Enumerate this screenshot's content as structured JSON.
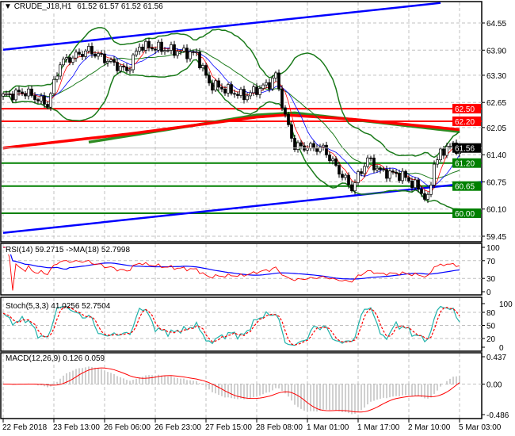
{
  "header": {
    "symbol": "CRUDE_J18,H1",
    "ohlc": "61.52 61.57 61.52 61.56"
  },
  "chart_data": {
    "type": "candlestick",
    "bar_count": 145,
    "price_path": [
      [
        0,
        62.8
      ],
      [
        7,
        62.9
      ],
      [
        14,
        62.6
      ],
      [
        18,
        63.6
      ],
      [
        27,
        63.9
      ],
      [
        39,
        63.4
      ],
      [
        43,
        64.0
      ],
      [
        49,
        63.95
      ],
      [
        61,
        63.8
      ],
      [
        65,
        63.1
      ],
      [
        76,
        62.8
      ],
      [
        84,
        63.1
      ],
      [
        86,
        63.3
      ],
      [
        89,
        62.3
      ],
      [
        92,
        61.6
      ],
      [
        101,
        61.55
      ],
      [
        106,
        61.0
      ],
      [
        110,
        60.6
      ],
      [
        115,
        61.3
      ],
      [
        119,
        61.0
      ],
      [
        126,
        60.9
      ],
      [
        131,
        60.6
      ],
      [
        134,
        60.3
      ],
      [
        136,
        61.2
      ],
      [
        140,
        61.6
      ],
      [
        144,
        61.56
      ]
    ],
    "price_ticks": [
      "64.55",
      "63.90",
      "63.30",
      "62.65",
      "62.05",
      "61.40",
      "60.75",
      "60.10",
      "59.45"
    ],
    "price_range": [
      59.45,
      64.55
    ],
    "levels": [
      {
        "label": "62.50",
        "value": 62.5,
        "color": "#ff0000"
      },
      {
        "label": "62.20",
        "value": 62.2,
        "color": "#ff0000"
      },
      {
        "label": "61.20",
        "value": 61.2,
        "color": "#008000"
      },
      {
        "label": "60.65",
        "value": 60.65,
        "color": "#008000"
      },
      {
        "label": "60.00",
        "value": 60.0,
        "color": "#008000"
      }
    ],
    "current_price": {
      "label": "61.56",
      "value": 61.56
    },
    "trendlines": [
      {
        "from": [
          0,
          63.91
        ],
        "to": [
          138,
          65.03
        ],
        "color": "#0000ff"
      },
      {
        "from": [
          0,
          59.53
        ],
        "to": [
          151,
          60.75
        ],
        "color": "#0000ff"
      }
    ],
    "long_ma_red": [
      [
        0,
        61.56
      ],
      [
        40,
        61.9
      ],
      [
        80,
        62.3
      ],
      [
        89,
        62.35
      ],
      [
        110,
        62.25
      ],
      [
        144,
        62.0
      ]
    ],
    "long_ma_green": [
      [
        27,
        61.7
      ],
      [
        60,
        62.1
      ],
      [
        80,
        62.35
      ],
      [
        92,
        62.4
      ],
      [
        115,
        62.2
      ],
      [
        144,
        61.95
      ]
    ],
    "x_labels": [
      "22 Feb 2018",
      "23 Feb 13:00",
      "26 Feb 06:00",
      "26 Feb 23:00",
      "27 Feb 15:00",
      "28 Feb 08:00",
      "1 Mar 01:00",
      "1 Mar 17:00",
      "2 Mar 10:00",
      "5 Mar 03:00"
    ],
    "rsi": {
      "title": "RSI(14) 59.2715  ->MA(18) 52.7998",
      "ticks": [
        "100",
        "70",
        "30",
        "0"
      ]
    },
    "stoch": {
      "title": "Stoch(5,3,3) 41.0256 52.7504",
      "ticks": [
        "100",
        "80",
        "50",
        "20",
        "0"
      ]
    },
    "macd": {
      "title": "MACD(12,26,9) 0.126 0.059",
      "ticks": [
        "0.437",
        "0.00",
        "-0.486"
      ],
      "range": [
        -0.486,
        0.437
      ]
    }
  }
}
